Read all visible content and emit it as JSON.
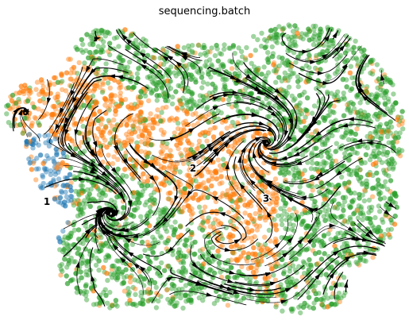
{
  "chart_data": {
    "type": "scatter",
    "title": "sequencing.batch",
    "xlabel": "",
    "ylabel": "",
    "axes_visible": false,
    "grid": false,
    "legend": "none",
    "overlay": "velocity streamlines (black, with arrowheads)",
    "series": [
      {
        "label": "1",
        "color": "#1f77b4"
      },
      {
        "label": "2",
        "color": "#ff7f0e"
      },
      {
        "label": "3",
        "color": "#2ca02c"
      }
    ]
  }
}
